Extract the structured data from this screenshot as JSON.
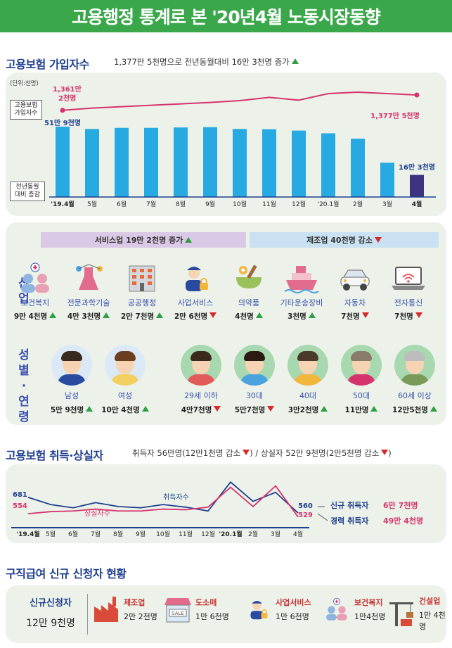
{
  "title": "고용행정 통계로 본 '20년4월 노동시장동향",
  "insurance": {
    "section_title": "고용보험 가입자수",
    "summary": "1,377만 5천명으로 전년동월대비 16만 3천명 증가",
    "unit": "(단위:천명)",
    "line_label": "고용보험 가입자수",
    "bar_label": "전년동월 대비 증감",
    "line_start_label": "1,361만 2천명",
    "line_end_label": "1,377만 5천명",
    "bar_first_label": "51만 9천명",
    "bar_last_label": "16만 3천명"
  },
  "chart_data": [
    {
      "type": "bar",
      "title": "고용보험 가입자수",
      "categories": [
        "'19.4월",
        "5월",
        "6월",
        "7월",
        "8월",
        "9월",
        "10월",
        "11월",
        "12월",
        "'20.1월",
        "2월",
        "3월",
        "4월"
      ],
      "series": [
        {
          "name": "전년동월 대비 증감 (천명)",
          "values": [
            519,
            502,
            510,
            510,
            513,
            515,
            502,
            500,
            490,
            470,
            430,
            253,
            163
          ]
        },
        {
          "name": "고용보험 가입자수 (천명)",
          "values": [
            13612,
            13635,
            13650,
            13665,
            13680,
            13695,
            13715,
            13750,
            13720,
            13790,
            13805,
            13790,
            13775
          ]
        }
      ],
      "ylim": [
        0,
        550
      ]
    },
    {
      "type": "line",
      "title": "고용보험 취득·상실자",
      "categories": [
        "'19.4월",
        "5월",
        "6월",
        "7월",
        "8월",
        "9월",
        "10월",
        "11월",
        "12월",
        "'20.1월",
        "2월",
        "3월",
        "4월"
      ],
      "series": [
        {
          "name": "취득자수",
          "values": [
            681,
            625,
            600,
            640,
            610,
            600,
            625,
            605,
            575,
            800,
            650,
            720,
            560
          ]
        },
        {
          "name": "상실자수",
          "values": [
            554,
            570,
            575,
            590,
            575,
            575,
            590,
            585,
            605,
            760,
            610,
            770,
            529
          ]
        }
      ],
      "ylim": [
        500,
        850
      ]
    }
  ],
  "industry": {
    "label": "산업",
    "service_band": "서비스업 19만 2천명 증가",
    "manuf_band": "제조업 40천명 감소",
    "items": [
      {
        "name": "보건복지",
        "value": "9만 4천명",
        "dir": "up"
      },
      {
        "name": "전문과학기술",
        "value": "4만 3천명",
        "dir": "up"
      },
      {
        "name": "공공행정",
        "value": "2만 7천명",
        "dir": "up"
      },
      {
        "name": "사업서비스",
        "value": "2만 6천명",
        "dir": "down"
      },
      {
        "name": "의약품",
        "value": "4천명",
        "dir": "up"
      },
      {
        "name": "기타운송장비",
        "value": "3천명",
        "dir": "up"
      },
      {
        "name": "자동차",
        "value": "7천명",
        "dir": "down"
      },
      {
        "name": "전자통신",
        "value": "7천명",
        "dir": "down"
      }
    ]
  },
  "demo": {
    "label": "성별·연령",
    "items": [
      {
        "name": "남성",
        "value": "5만 9천명",
        "dir": "up"
      },
      {
        "name": "여성",
        "value": "10만 4천명",
        "dir": "up"
      },
      {
        "name": "29세 이하",
        "value": "4만7천명",
        "dir": "down"
      },
      {
        "name": "30대",
        "value": "5만7천명",
        "dir": "down"
      },
      {
        "name": "40대",
        "value": "3만2천명",
        "dir": "up"
      },
      {
        "name": "50대",
        "value": "11만명",
        "dir": "up"
      },
      {
        "name": "60세 이상",
        "value": "12만5천명",
        "dir": "up"
      }
    ]
  },
  "flows": {
    "section_title": "고용보험 취득·상실자",
    "summary_a": "취득자 56만명(12만1천명 감소",
    "summary_b": ") / 상실자 52만 9천명(2만5천명 감소",
    "summary_c": ")",
    "acq_series_label": "취득자수",
    "loss_series_label": "상실자수",
    "start_acq": "681",
    "start_loss": "554",
    "end_acq": "560",
    "end_loss": "529",
    "new_label": "신규 취득자",
    "new_value": "6만 7천명",
    "exp_label": "경력 취득자",
    "exp_value": "49만 4천명"
  },
  "benefit": {
    "section_title": "구직급여 신규 신청자 현황",
    "total_label": "신규신청자",
    "total_value": "12만 9천명",
    "items": [
      {
        "name": "제조업",
        "value": "2만 2천명"
      },
      {
        "name": "도소매",
        "value": "1만 6천명"
      },
      {
        "name": "사업서비스",
        "value": "1만 6천명"
      },
      {
        "name": "보건복지",
        "value": "1만4천명"
      },
      {
        "name": "건설업",
        "value": "1만 4천명"
      }
    ],
    "sale_sign": "SALE"
  },
  "colors": {
    "green": "#3aa84a",
    "bar": "#27a9e1",
    "bar_last": "#3d3480",
    "line": "#d6336c",
    "navy": "#1f3f8f"
  }
}
